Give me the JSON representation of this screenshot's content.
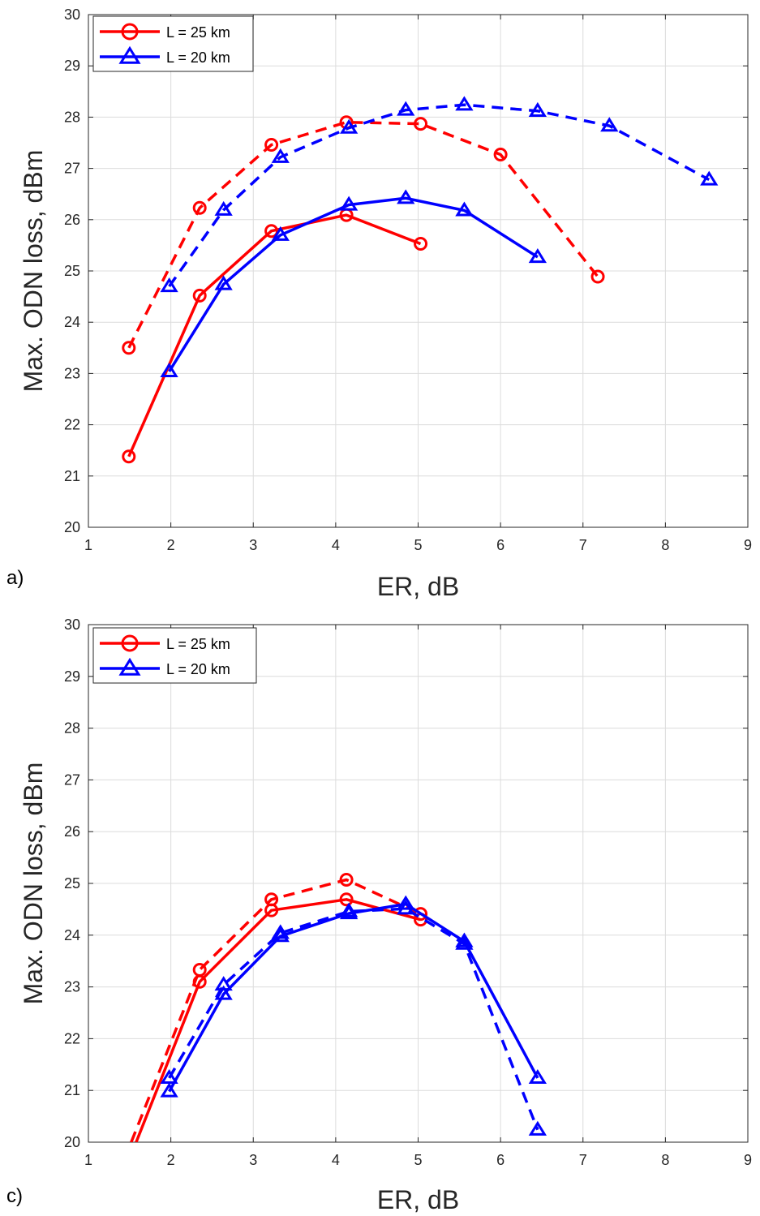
{
  "chart_data": [
    {
      "type": "line",
      "panel_label": "a)",
      "xlabel": "ER, dB",
      "ylabel": "Max. ODN loss, dBm",
      "xlim": [
        1,
        9
      ],
      "ylim": [
        20,
        30
      ],
      "xticks": [
        "1",
        "2",
        "3",
        "4",
        "5",
        "6",
        "7",
        "8",
        "9"
      ],
      "yticks": [
        "20",
        "21",
        "22",
        "23",
        "24",
        "25",
        "26",
        "27",
        "28",
        "29",
        "30"
      ],
      "grid": true,
      "legend_position": "top-left",
      "legend": [
        {
          "label": "L = 25 km",
          "color": "#ff0000",
          "marker": "circle"
        },
        {
          "label": "L = 20 km",
          "color": "#0000ff",
          "marker": "triangle"
        }
      ],
      "series": [
        {
          "color": "#ff0000",
          "marker": "circle",
          "dash": "solid",
          "x": [
            1.49,
            2.35,
            3.22,
            4.13,
            5.03
          ],
          "y": [
            21.38,
            24.52,
            25.78,
            26.09,
            25.53
          ]
        },
        {
          "color": "#ff0000",
          "marker": "circle",
          "dash": "dashed",
          "x": [
            1.49,
            2.35,
            3.22,
            4.13,
            5.03,
            6.0,
            7.18
          ],
          "y": [
            23.5,
            26.23,
            27.46,
            27.9,
            27.87,
            27.27,
            24.89
          ]
        },
        {
          "color": "#0000ff",
          "marker": "triangle",
          "dash": "solid",
          "x": [
            1.98,
            2.64,
            3.33,
            4.16,
            4.85,
            5.56,
            6.45
          ],
          "y": [
            23.04,
            24.74,
            25.7,
            26.29,
            26.42,
            26.18,
            25.27
          ]
        },
        {
          "color": "#0000ff",
          "marker": "triangle",
          "dash": "dashed",
          "x": [
            1.98,
            2.64,
            3.33,
            4.16,
            4.85,
            5.56,
            6.45,
            7.32,
            8.53
          ],
          "y": [
            24.7,
            26.19,
            27.22,
            27.79,
            28.14,
            28.24,
            28.12,
            27.83,
            26.78
          ]
        }
      ]
    },
    {
      "type": "line",
      "panel_label": "c)",
      "xlabel": "ER, dB",
      "ylabel": "Max. ODN loss, dBm",
      "xlim": [
        1,
        9
      ],
      "ylim": [
        20,
        30
      ],
      "xticks": [
        "1",
        "2",
        "3",
        "4",
        "5",
        "6",
        "7",
        "8",
        "9"
      ],
      "yticks": [
        "20",
        "21",
        "22",
        "23",
        "24",
        "25",
        "26",
        "27",
        "28",
        "29",
        "30"
      ],
      "grid": true,
      "legend_position": "top-left",
      "legend": [
        {
          "label": "L = 25 km",
          "color": "#ff0000",
          "marker": "circle"
        },
        {
          "label": "L = 20 km",
          "color": "#0000ff",
          "marker": "triangle"
        }
      ],
      "series": [
        {
          "color": "#ff0000",
          "marker": "circle",
          "dash": "solid",
          "x": [
            1.58,
            2.35,
            3.22,
            4.13,
            5.03
          ],
          "y": [
            20.0,
            23.1,
            24.48,
            24.69,
            24.3
          ],
          "markers": [
            false,
            true,
            true,
            true,
            true
          ]
        },
        {
          "color": "#ff0000",
          "marker": "circle",
          "dash": "dashed",
          "x": [
            1.52,
            2.35,
            3.22,
            4.13,
            5.03
          ],
          "y": [
            20.0,
            23.33,
            24.69,
            25.07,
            24.41
          ],
          "markers": [
            false,
            true,
            true,
            true,
            true
          ]
        },
        {
          "color": "#0000ff",
          "marker": "triangle",
          "dash": "solid",
          "x": [
            1.98,
            2.64,
            3.33,
            4.16,
            4.85,
            5.56,
            6.45
          ],
          "y": [
            20.98,
            22.86,
            23.98,
            24.42,
            24.6,
            23.88,
            21.24
          ]
        },
        {
          "color": "#0000ff",
          "marker": "triangle",
          "dash": "dashed",
          "x": [
            1.98,
            2.64,
            3.33,
            4.16,
            4.85,
            5.56,
            6.45
          ],
          "y": [
            21.24,
            23.04,
            24.04,
            24.46,
            24.51,
            23.83,
            20.24
          ]
        }
      ]
    }
  ]
}
